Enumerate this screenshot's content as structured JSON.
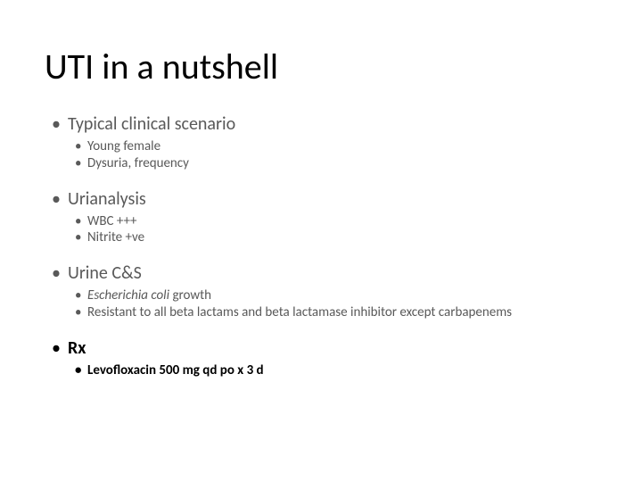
{
  "slide": {
    "title": "UTI in a nutshell",
    "title_fontsize": 40,
    "title_color": "#000000",
    "background": "#ffffff",
    "body_color": "#595959",
    "bold_color": "#000000",
    "level1_fontsize": 20,
    "level2_fontsize": 15,
    "sections": [
      {
        "label": "Typical clinical scenario",
        "bold": false,
        "items": [
          {
            "text": "Young female",
            "bold": false,
            "italic_prefix": ""
          },
          {
            "text": "Dysuria, frequency",
            "bold": false,
            "italic_prefix": ""
          }
        ]
      },
      {
        "label": "Urianalysis",
        "bold": false,
        "items": [
          {
            "text": "WBC +++",
            "bold": false,
            "italic_prefix": ""
          },
          {
            "text": "Nitrite +ve",
            "bold": false,
            "italic_prefix": ""
          }
        ]
      },
      {
        "label": "Urine C&S",
        "bold": false,
        "items": [
          {
            "text": " growth",
            "bold": false,
            "italic_prefix": "Escherichia coli"
          },
          {
            "text": "Resistant to all beta lactams and beta lactamase inhibitor except carbapenems",
            "bold": false,
            "italic_prefix": ""
          }
        ]
      },
      {
        "label": "Rx",
        "bold": true,
        "items": [
          {
            "text": "Levofloxacin 500 mg qd po x 3 d",
            "bold": true,
            "italic_prefix": ""
          }
        ]
      }
    ]
  }
}
